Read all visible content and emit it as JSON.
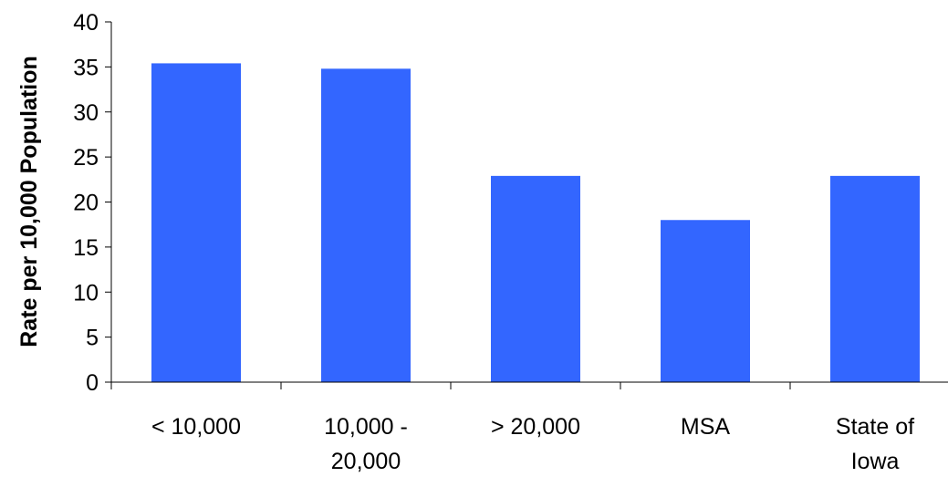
{
  "chart_data": {
    "type": "bar",
    "title": "",
    "xlabel": "",
    "ylabel": "Rate per 10,000 Population",
    "categories": [
      [
        "< 10,000"
      ],
      [
        "10,000 -",
        "20,000"
      ],
      [
        "> 20,000"
      ],
      [
        "MSA"
      ],
      [
        "State of",
        "Iowa"
      ]
    ],
    "values": [
      35.4,
      34.8,
      22.9,
      18.0,
      22.9
    ],
    "ylim": [
      0,
      40
    ],
    "yticks": [
      0,
      5,
      10,
      15,
      20,
      25,
      30,
      35,
      40
    ],
    "bar_color": "#3366FF",
    "grid": false,
    "legend": "none"
  }
}
